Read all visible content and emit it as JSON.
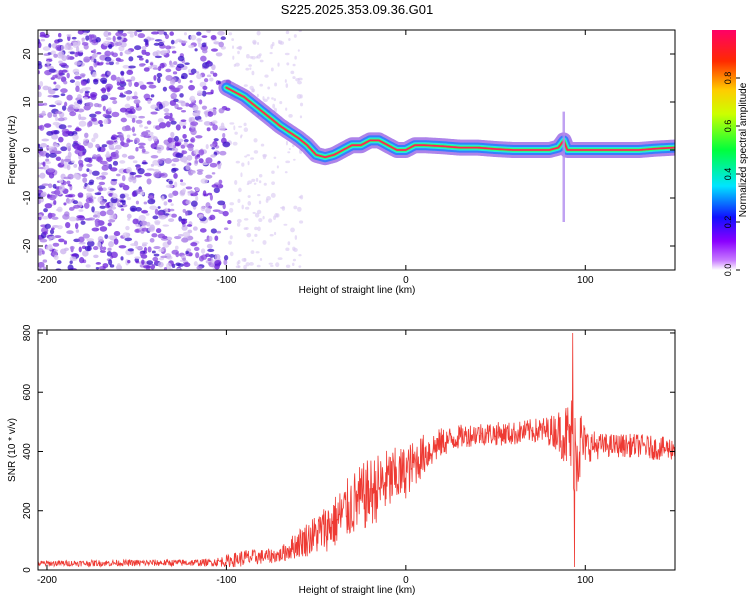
{
  "figure_title": "S225.2025.353.09.36.G01",
  "colors": {
    "snr_line": "#ee3a33",
    "ridge_low": "#2b7bff",
    "ridge_mid": "#22e6e6",
    "ridge_high": "#ff2255",
    "scatter_light": "#d9c8f2",
    "scatter_dark": "#6a1ed8"
  },
  "chart_data": [
    {
      "type": "heatmap",
      "name": "spectrogram",
      "xlabel": "Height of straight line (km)",
      "ylabel": "Frequency (Hz)",
      "xlim": [
        -205,
        150
      ],
      "ylim": [
        -25,
        25
      ],
      "x_ticks": [
        -200,
        -100,
        0,
        100
      ],
      "y_ticks": [
        -20,
        -10,
        0,
        10,
        20
      ],
      "colorbar": {
        "label": "Normalized spectral amplitude",
        "range": [
          0,
          1
        ],
        "ticks": [
          0.0,
          0.2,
          0.4,
          0.6,
          0.8
        ],
        "tick_labels": [
          "0.0",
          "0.2",
          "0.4",
          "0.6",
          "0.8"
        ],
        "colormap": [
          "#ffffff",
          "#8a00ff",
          "#0000ff",
          "#00ffff",
          "#00ff00",
          "#ffff00",
          "#ff0000",
          "#ff0066"
        ]
      },
      "ridge": {
        "x": [
          -100,
          -90,
          -80,
          -70,
          -60,
          -55,
          -50,
          -45,
          -40,
          -35,
          -30,
          -25,
          -20,
          -15,
          -10,
          -5,
          0,
          5,
          10,
          20,
          30,
          40,
          50,
          60,
          70,
          80,
          85,
          88,
          90,
          95,
          100,
          110,
          120,
          130,
          140,
          150
        ],
        "y": [
          13,
          11,
          8,
          5,
          2.5,
          1,
          -1,
          -1.5,
          -1,
          0,
          1,
          1,
          2,
          2,
          1,
          0,
          0,
          1,
          1,
          0.8,
          0.5,
          0.5,
          0.2,
          0,
          0,
          0,
          0.5,
          2,
          0,
          0,
          0,
          0,
          0,
          0,
          0.3,
          0.5
        ]
      },
      "spike": {
        "x": 88,
        "ymin": -15,
        "ymax": 8
      }
    },
    {
      "type": "line",
      "name": "snr",
      "xlabel": "Height of straight line (km)",
      "ylabel": "SNR (10 * v/v)",
      "xlim": [
        -205,
        150
      ],
      "ylim": [
        0,
        810
      ],
      "x_ticks": [
        -200,
        -100,
        0,
        100
      ],
      "y_ticks": [
        0,
        200,
        400,
        600,
        800
      ],
      "envelope": {
        "x": [
          -205,
          -110,
          -100,
          -90,
          -80,
          -70,
          -60,
          -50,
          -40,
          -30,
          -20,
          -10,
          0,
          10,
          20,
          30,
          40,
          50,
          60,
          70,
          80,
          85,
          90,
          95,
          100,
          110,
          120,
          130,
          140,
          150
        ],
        "mean": [
          22,
          25,
          30,
          40,
          45,
          50,
          90,
          120,
          160,
          220,
          260,
          300,
          330,
          390,
          430,
          450,
          460,
          460,
          460,
          470,
          470,
          470,
          450,
          430,
          420,
          420,
          420,
          420,
          410,
          410
        ],
        "spread": [
          10,
          12,
          20,
          30,
          25,
          25,
          50,
          70,
          90,
          110,
          120,
          110,
          90,
          70,
          50,
          40,
          40,
          40,
          40,
          40,
          50,
          70,
          120,
          200,
          60,
          40,
          40,
          40,
          40,
          40
        ]
      },
      "extremes": {
        "max": {
          "x": 93,
          "y": 800
        },
        "min": {
          "x": 94,
          "y": 10
        }
      }
    }
  ]
}
